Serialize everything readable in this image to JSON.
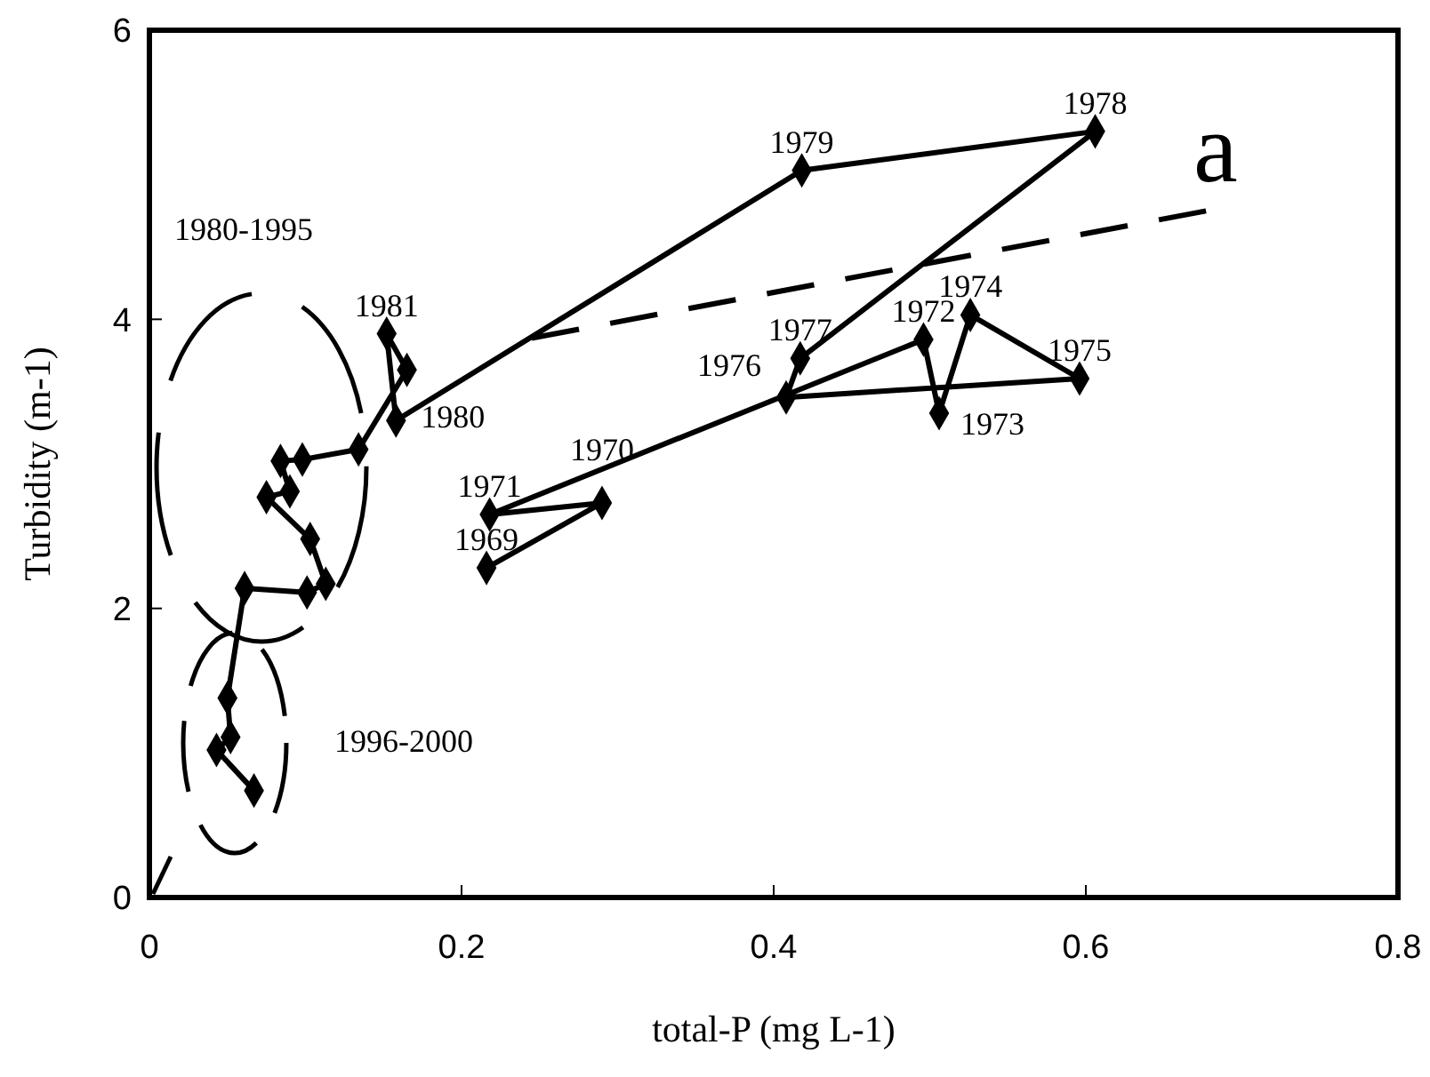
{
  "chart_data": {
    "type": "line",
    "xlabel": "total-P (mg L-1)",
    "ylabel": "Turbidity (m-1)",
    "xlim": [
      0,
      0.8
    ],
    "ylim": [
      0,
      6
    ],
    "xticks": [
      0,
      0.2,
      0.4,
      0.6,
      0.8
    ],
    "yticks": [
      0,
      2,
      4,
      6
    ],
    "grid": false,
    "marker": "diamond",
    "line_style": "solid",
    "series": [
      {
        "color": "#000000",
        "x": [
          0.216,
          0.29,
          0.218,
          0.496,
          0.506,
          0.526,
          0.596,
          0.408,
          0.417,
          0.606,
          0.418,
          0.158,
          0.152,
          0.165,
          0.134,
          0.098,
          0.084,
          0.09,
          0.075,
          0.103,
          0.113,
          0.101,
          0.061,
          0.05,
          0.052,
          0.043,
          0.067
        ],
        "values": [
          2.28,
          2.73,
          2.65,
          3.86,
          3.35,
          4.03,
          3.59,
          3.46,
          3.73,
          5.3,
          5.03,
          3.3,
          3.9,
          3.65,
          3.1,
          3.03,
          3.02,
          2.81,
          2.77,
          2.48,
          2.17,
          2.11,
          2.14,
          1.38,
          1.11,
          1.02,
          0.74
        ]
      },
      {
        "type": "line",
        "color": "#000000",
        "marker": "none",
        "line_style": "dashed",
        "x": [
          0.245,
          0.677
        ],
        "values": [
          3.87,
          4.75
        ]
      }
    ],
    "annotations": [
      {
        "text": "1969",
        "x": 0.216,
        "y": 2.28
      },
      {
        "text": "1970",
        "x": 0.29,
        "y": 2.73
      },
      {
        "text": "1971",
        "x": 0.218,
        "y": 2.65
      },
      {
        "text": "1972",
        "x": 0.496,
        "y": 3.86
      },
      {
        "text": "1973",
        "x": 0.506,
        "y": 3.35
      },
      {
        "text": "1974",
        "x": 0.526,
        "y": 4.03
      },
      {
        "text": "1975",
        "x": 0.596,
        "y": 3.59
      },
      {
        "text": "1976",
        "x": 0.408,
        "y": 3.46
      },
      {
        "text": "1977",
        "x": 0.417,
        "y": 3.73
      },
      {
        "text": "1978",
        "x": 0.606,
        "y": 5.3
      },
      {
        "text": "1979",
        "x": 0.418,
        "y": 5.03
      },
      {
        "text": "1980",
        "x": 0.158,
        "y": 3.3
      },
      {
        "text": "1981",
        "x": 0.152,
        "y": 3.9
      },
      "1980-1995",
      "1996-2000",
      "a"
    ]
  }
}
